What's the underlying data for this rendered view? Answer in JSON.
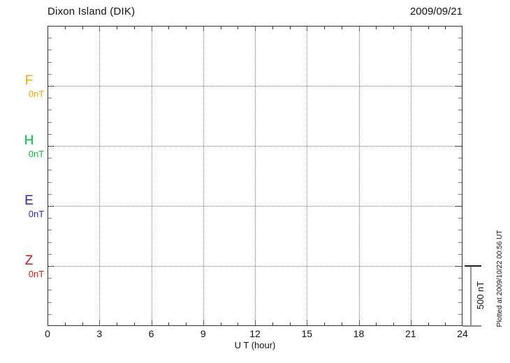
{
  "chart_data": {
    "type": "line",
    "title": "Dixon Island (DIK)",
    "date": "2009/09/21",
    "xlabel": "U T (hour)",
    "x_range_hours": [
      0,
      24
    ],
    "x_major_ticks": [
      0,
      3,
      6,
      9,
      12,
      15,
      18,
      21,
      24
    ],
    "x_minor_step_hours": 1,
    "y_minor_tick_nT": 100,
    "channel_spacing_nT": 500,
    "grid_style": "dotted",
    "legend_position": "left-margin",
    "channels": [
      {
        "label": "F",
        "baseline_label": "0nT",
        "color": "#FFA500"
      },
      {
        "label": "H",
        "baseline_label": "0nT",
        "color": "#00C832"
      },
      {
        "label": "E",
        "baseline_label": "0nT",
        "color": "#2424CC"
      },
      {
        "label": "Z",
        "baseline_label": "0nT",
        "color": "#E81414"
      }
    ],
    "scale_bar": {
      "label": "500 nT",
      "span_nT": 500
    },
    "plotted_at": "Plotted at 2009/10/22 00:56 UT",
    "series": []
  }
}
